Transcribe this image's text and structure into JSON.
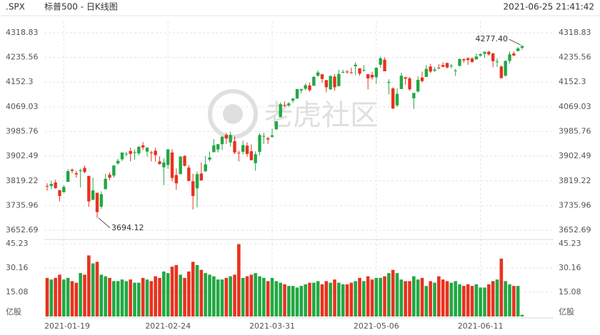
{
  "chart_data": {
    "type": "candlestick",
    "symbol": ".SPX",
    "title": "标普500 - 日K线图",
    "timestamp": "2021-06-25 21:41:42",
    "watermark": "老虎社区",
    "up_color": "#21a843",
    "down_color": "#e8321e",
    "categories": [
      null,
      null,
      null,
      null,
      "2021-01-19",
      null,
      null,
      null,
      null,
      null,
      null,
      null,
      null,
      null,
      null,
      null,
      null,
      null,
      null,
      null,
      null,
      null,
      null,
      null,
      null,
      null,
      null,
      null,
      null,
      "2021-02-24",
      null,
      null,
      null,
      null,
      null,
      null,
      null,
      null,
      null,
      null,
      null,
      null,
      null,
      null,
      null,
      null,
      null,
      null,
      null,
      null,
      null,
      null,
      null,
      null,
      "2021-03-31",
      null,
      null,
      null,
      null,
      null,
      null,
      null,
      null,
      null,
      null,
      null,
      null,
      null,
      null,
      null,
      null,
      null,
      null,
      null,
      null,
      null,
      null,
      null,
      null,
      "2021-05-06",
      null,
      null,
      null,
      null,
      null,
      null,
      null,
      null,
      null,
      null,
      null,
      null,
      null,
      null,
      null,
      null,
      null,
      null,
      null,
      null,
      null,
      null,
      null,
      null,
      "2021-06-11",
      null,
      null,
      null,
      null,
      null,
      null,
      null,
      null,
      null,
      null
    ],
    "open": [
      3802,
      3802,
      3814,
      3788,
      3781,
      3816,
      3857,
      3845,
      3852,
      3863,
      3836,
      3755,
      3779,
      3732,
      3791,
      3840,
      3837,
      3878,
      3892,
      3910,
      3920,
      3916,
      3912,
      3939,
      3918,
      3915,
      3921,
      3885,
      3865,
      3873,
      3915,
      3839,
      3842,
      3903,
      3864,
      3818,
      3794,
      3844,
      3851,
      3891,
      3916,
      3925,
      3943,
      3974,
      3949,
      3953,
      3914,
      3917,
      3938,
      3919,
      3879,
      3917,
      3969,
      3963,
      3968,
      3993,
      4034,
      4075,
      4074,
      4090,
      4097,
      4124,
      4130,
      4141,
      4140,
      4174,
      4179,
      4159,
      4128,
      4171,
      4139,
      4185,
      4188,
      4185,
      4206,
      4199,
      4192,
      4179,
      4177,
      4169,
      4211,
      4228,
      4150,
      4131,
      4074,
      4129,
      4169,
      4165,
      4098,
      4121,
      4168,
      4170,
      4205,
      4191,
      4201,
      4210,
      4217,
      4207,
      4191,
      4207,
      4230,
      4233,
      4232,
      4229,
      4242,
      4248,
      4255,
      4249,
      4220,
      4205,
      4174,
      4224,
      4249,
      4257,
      4268
    ],
    "high": [
      3811,
      3820,
      3823,
      3788,
      3804,
      3859,
      3861,
      3853,
      3860,
      3871,
      3836,
      3830,
      3779,
      3784,
      3843,
      3848,
      3872,
      3894,
      3915,
      3918,
      3931,
      3925,
      3937,
      3950,
      3933,
      3921,
      3931,
      3902,
      3895,
      3928,
      3926,
      3861,
      3903,
      3906,
      3873,
      3843,
      3851,
      3881,
      3903,
      3918,
      3960,
      3944,
      3970,
      3981,
      3984,
      3969,
      3921,
      3955,
      3949,
      3942,
      3919,
      3979,
      3981,
      3968,
      3995,
      4021,
      4084,
      4087,
      4084,
      4098,
      4129,
      4131,
      4148,
      4151,
      4173,
      4192,
      4180,
      4160,
      4175,
      4179,
      4194,
      4194,
      4193,
      4201,
      4219,
      4199,
      4210,
      4179,
      4187,
      4202,
      4238,
      4236,
      4162,
      4135,
      4131,
      4184,
      4170,
      4170,
      4116,
      4172,
      4188,
      4210,
      4214,
      4203,
      4213,
      4219,
      4218,
      4213,
      4197,
      4233,
      4232,
      4237,
      4237,
      4249,
      4249,
      4255,
      4258,
      4251,
      4233,
      4209,
      4226,
      4256,
      4256,
      4271,
      4277.4
    ],
    "low": [
      3786,
      3791,
      3792,
      3750,
      3780,
      3816,
      3845,
      3830,
      3797,
      3845,
      3732,
      3755,
      3694.12,
      3725,
      3791,
      3822,
      3830,
      3874,
      3886,
      3902,
      3885,
      3891,
      3905,
      3923,
      3901,
      3885,
      3884,
      3874,
      3805,
      3860,
      3817,
      3789,
      3842,
      3868,
      3818,
      3723,
      3730,
      3819,
      3851,
      3885,
      3916,
      3915,
      3923,
      3944,
      3935,
      3910,
      3885,
      3909,
      3901,
      3888,
      3853,
      3906,
      3944,
      3944,
      3965,
      3992,
      4034,
      4069,
      4069,
      4082,
      4096,
      4114,
      4125,
      4120,
      4140,
      4171,
      4150,
      4118,
      4126,
      4123,
      4138,
      4182,
      4181,
      4181,
      4176,
      4174,
      4188,
      4128,
      4161,
      4147,
      4201,
      4189,
      4111,
      4062,
      4069,
      4129,
      4143,
      4124,
      4062,
      4117,
      4151,
      4170,
      4183,
      4187,
      4197,
      4203,
      4198,
      4199,
      4173,
      4206,
      4217,
      4211,
      4219,
      4229,
      4238,
      4234,
      4242,
      4203,
      4203,
      4164,
      4171,
      4215,
      4241,
      4257,
      4262
    ],
    "close": [
      3801,
      3809,
      3795,
      3768,
      3799,
      3852,
      3853,
      3841,
      3855,
      3849,
      3750,
      3787,
      3714,
      3774,
      3826,
      3830,
      3871,
      3887,
      3915,
      3911,
      3910,
      3916,
      3934,
      3932,
      3931,
      3913,
      3906,
      3876,
      3881,
      3925,
      3829,
      3811,
      3901,
      3870,
      3819,
      3768,
      3842,
      3821,
      3875,
      3898,
      3939,
      3943,
      3968,
      3962,
      3974,
      3915,
      3913,
      3940,
      3910,
      3889,
      3909,
      3974,
      3971,
      3959,
      3973,
      4020,
      4078,
      4074,
      4080,
      4097,
      4129,
      4128,
      4142,
      4125,
      4170,
      4185,
      4163,
      4135,
      4173,
      4135,
      4180,
      4187,
      4186,
      4184,
      4211,
      4181,
      4193,
      4165,
      4168,
      4201,
      4233,
      4189,
      4153,
      4063,
      4113,
      4174,
      4164,
      4128,
      4116,
      4160,
      4156,
      4197,
      4188,
      4195,
      4200,
      4204,
      4202,
      4208,
      4192,
      4230,
      4226,
      4227,
      4220,
      4239,
      4247,
      4255,
      4246,
      4223,
      4222,
      4166,
      4224,
      4246,
      4242,
      4266,
      4274
    ],
    "volume": [
      24,
      23,
      24,
      26,
      23,
      24,
      22,
      21,
      27,
      26,
      38,
      33,
      34,
      26,
      25,
      24,
      22,
      22,
      23,
      22,
      23,
      21,
      21,
      24,
      23,
      22,
      25,
      24,
      28,
      27,
      31,
      32,
      26,
      24,
      28,
      34,
      32,
      29,
      27,
      26,
      25,
      23,
      23,
      24,
      25,
      26,
      45,
      24,
      25,
      26,
      27,
      25,
      24,
      22,
      24,
      22,
      21,
      20,
      19,
      19,
      18,
      19,
      20,
      21,
      21,
      22,
      20,
      22,
      21,
      23,
      21,
      20,
      20,
      21,
      22,
      24,
      22,
      25,
      23,
      24,
      24,
      25,
      27,
      29,
      27,
      23,
      22,
      22,
      25,
      23,
      24,
      19,
      22,
      21,
      25,
      23,
      22,
      21,
      22,
      20,
      19,
      20,
      19,
      20,
      18,
      18,
      20,
      22,
      23,
      36,
      22,
      20,
      19,
      19,
      1
    ],
    "ylim": [
      3652.69,
      4318.83
    ],
    "yticks": [
      4318.83,
      4235.56,
      4152.3,
      4069.03,
      3985.76,
      3902.49,
      3819.22,
      3735.96,
      3652.69
    ],
    "volume_ylim": [
      0,
      45.23
    ],
    "volume_yticks": [
      45.23,
      30.16,
      15.08
    ],
    "volume_unit": "亿股",
    "annotations": [
      {
        "value": 4277.4,
        "label": "4277.40"
      },
      {
        "value": 3694.12,
        "label": "3694.12"
      }
    ],
    "grid": true
  }
}
